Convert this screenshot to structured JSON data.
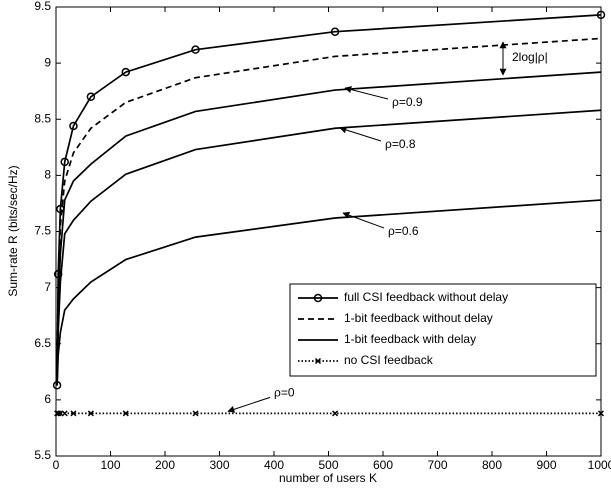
{
  "chart_data": {
    "type": "line",
    "x_label": "number of users K",
    "y_label": "Sum-rate R (bits/sec/Hz)",
    "x": [
      2,
      4,
      8,
      16,
      32,
      64,
      128,
      256,
      512,
      1000
    ],
    "series": [
      {
        "name": "full CSI feedback without delay",
        "color": "#000000",
        "style": "solid",
        "marker": "circle",
        "values": [
          6.13,
          7.12,
          7.7,
          8.12,
          8.44,
          8.7,
          8.92,
          9.12,
          9.28,
          9.43
        ]
      },
      {
        "name": "1-bit feedback without delay",
        "color": "#000000",
        "style": "dashed",
        "values": [
          6.13,
          6.95,
          7.55,
          7.95,
          8.2,
          8.42,
          8.65,
          8.87,
          9.06,
          9.22
        ]
      },
      {
        "name": "1-bit feedback with delay",
        "color": "#000000",
        "style": "solid",
        "curves": [
          {
            "label": "ρ=0.9",
            "values": [
              6.13,
              6.8,
              7.3,
              7.78,
              7.95,
              8.1,
              8.35,
              8.57,
              8.76,
              8.92
            ]
          },
          {
            "label": "ρ=0.8",
            "values": [
              6.13,
              6.6,
              7.05,
              7.48,
              7.6,
              7.77,
              8.01,
              8.23,
              8.42,
              8.58
            ]
          },
          {
            "label": "ρ=0.6",
            "values": [
              6.13,
              6.4,
              6.6,
              6.8,
              6.9,
              7.05,
              7.25,
              7.45,
              7.62,
              7.78
            ]
          }
        ]
      },
      {
        "name": "no CSI feedback",
        "color": "#000000",
        "style": "dotted",
        "marker": "x",
        "label": "ρ=0",
        "values": [
          5.88,
          5.88,
          5.88,
          5.88,
          5.88,
          5.88,
          5.88,
          5.88,
          5.88,
          5.88
        ]
      }
    ],
    "annotation": "2log|ρ|",
    "xlim": [
      0,
      1000
    ],
    "xticks": [
      0,
      100,
      200,
      300,
      400,
      500,
      600,
      700,
      800,
      900,
      1000
    ],
    "ylim": [
      5.5,
      9.5
    ],
    "yticks": [
      5.5,
      6,
      6.5,
      7,
      7.5,
      8,
      8.5,
      9,
      9.5
    ],
    "legend": "lower right"
  }
}
